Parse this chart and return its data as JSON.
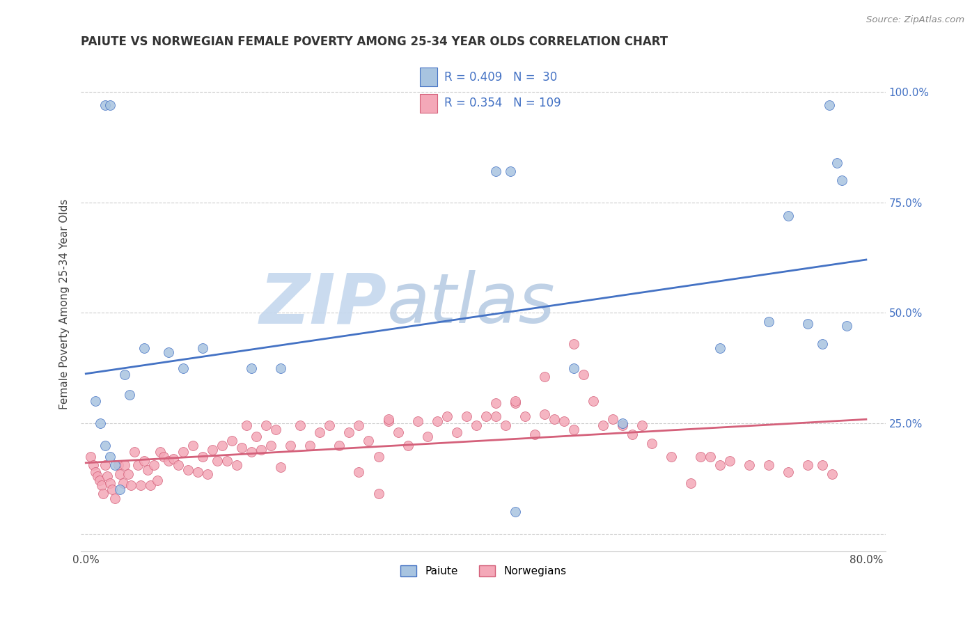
{
  "title": "PAIUTE VS NORWEGIAN FEMALE POVERTY AMONG 25-34 YEAR OLDS CORRELATION CHART",
  "source": "Source: ZipAtlas.com",
  "ylabel": "Female Poverty Among 25-34 Year Olds",
  "xlim": [
    -0.005,
    0.82
  ],
  "ylim": [
    -0.04,
    1.08
  ],
  "x_ticks": [
    0.0,
    0.1,
    0.2,
    0.3,
    0.4,
    0.5,
    0.6,
    0.7,
    0.8
  ],
  "x_tick_labels": [
    "0.0%",
    "",
    "",
    "",
    "",
    "",
    "",
    "",
    "80.0%"
  ],
  "y_ticks": [
    0.0,
    0.25,
    0.5,
    0.75,
    1.0
  ],
  "y_tick_labels": [
    "",
    "25.0%",
    "50.0%",
    "75.0%",
    "100.0%"
  ],
  "paiute_R": 0.409,
  "paiute_N": 30,
  "norwegian_R": 0.354,
  "norwegian_N": 109,
  "paiute_color": "#a8c4e0",
  "norwegian_color": "#f4a8b8",
  "paiute_line_color": "#4472c4",
  "norwegian_line_color": "#d4607a",
  "legend_label_paiute": "Paiute",
  "legend_label_norwegian": "Norwegians",
  "watermark_zip": "ZIP",
  "watermark_atlas": "atlas",
  "watermark_color_zip": "#c5d8ee",
  "watermark_color_atlas": "#b8cce4",
  "paiute_x": [
    0.02,
    0.025,
    0.01,
    0.015,
    0.02,
    0.025,
    0.03,
    0.035,
    0.04,
    0.045,
    0.06,
    0.085,
    0.1,
    0.12,
    0.17,
    0.2,
    0.42,
    0.435,
    0.5,
    0.55,
    0.65,
    0.7,
    0.72,
    0.74,
    0.755,
    0.762,
    0.77,
    0.775,
    0.78,
    0.44
  ],
  "paiute_y": [
    0.97,
    0.97,
    0.3,
    0.25,
    0.2,
    0.175,
    0.155,
    0.1,
    0.36,
    0.315,
    0.42,
    0.41,
    0.375,
    0.42,
    0.375,
    0.375,
    0.82,
    0.82,
    0.375,
    0.25,
    0.42,
    0.48,
    0.72,
    0.475,
    0.43,
    0.97,
    0.84,
    0.8,
    0.47,
    0.05
  ],
  "norwegian_x": [
    0.005,
    0.008,
    0.01,
    0.012,
    0.014,
    0.016,
    0.018,
    0.02,
    0.022,
    0.025,
    0.027,
    0.03,
    0.033,
    0.035,
    0.038,
    0.04,
    0.043,
    0.046,
    0.05,
    0.053,
    0.056,
    0.06,
    0.063,
    0.066,
    0.07,
    0.073,
    0.076,
    0.08,
    0.085,
    0.09,
    0.095,
    0.1,
    0.105,
    0.11,
    0.115,
    0.12,
    0.125,
    0.13,
    0.135,
    0.14,
    0.145,
    0.15,
    0.155,
    0.16,
    0.165,
    0.17,
    0.175,
    0.18,
    0.185,
    0.19,
    0.195,
    0.2,
    0.21,
    0.22,
    0.23,
    0.24,
    0.25,
    0.26,
    0.27,
    0.28,
    0.29,
    0.3,
    0.31,
    0.32,
    0.33,
    0.34,
    0.35,
    0.36,
    0.37,
    0.38,
    0.39,
    0.4,
    0.41,
    0.42,
    0.43,
    0.44,
    0.45,
    0.46,
    0.47,
    0.48,
    0.49,
    0.5,
    0.51,
    0.52,
    0.53,
    0.54,
    0.55,
    0.56,
    0.57,
    0.58,
    0.6,
    0.62,
    0.63,
    0.64,
    0.65,
    0.66,
    0.68,
    0.7,
    0.72,
    0.74,
    0.755,
    0.765,
    0.5,
    0.44,
    0.47,
    0.31,
    0.42,
    0.28,
    0.3
  ],
  "norwegian_y": [
    0.175,
    0.155,
    0.14,
    0.13,
    0.12,
    0.11,
    0.09,
    0.155,
    0.13,
    0.115,
    0.1,
    0.08,
    0.155,
    0.135,
    0.115,
    0.155,
    0.135,
    0.11,
    0.185,
    0.155,
    0.11,
    0.165,
    0.145,
    0.11,
    0.155,
    0.12,
    0.185,
    0.175,
    0.165,
    0.17,
    0.155,
    0.185,
    0.145,
    0.2,
    0.14,
    0.175,
    0.135,
    0.19,
    0.165,
    0.2,
    0.165,
    0.21,
    0.155,
    0.195,
    0.245,
    0.185,
    0.22,
    0.19,
    0.245,
    0.2,
    0.235,
    0.15,
    0.2,
    0.245,
    0.2,
    0.23,
    0.245,
    0.2,
    0.23,
    0.245,
    0.21,
    0.175,
    0.255,
    0.23,
    0.2,
    0.255,
    0.22,
    0.255,
    0.265,
    0.23,
    0.265,
    0.245,
    0.265,
    0.265,
    0.245,
    0.295,
    0.265,
    0.225,
    0.27,
    0.26,
    0.255,
    0.235,
    0.36,
    0.3,
    0.245,
    0.26,
    0.245,
    0.225,
    0.245,
    0.205,
    0.175,
    0.115,
    0.175,
    0.175,
    0.155,
    0.165,
    0.155,
    0.155,
    0.14,
    0.155,
    0.155,
    0.135,
    0.43,
    0.3,
    0.355,
    0.26,
    0.295,
    0.14,
    0.09
  ]
}
